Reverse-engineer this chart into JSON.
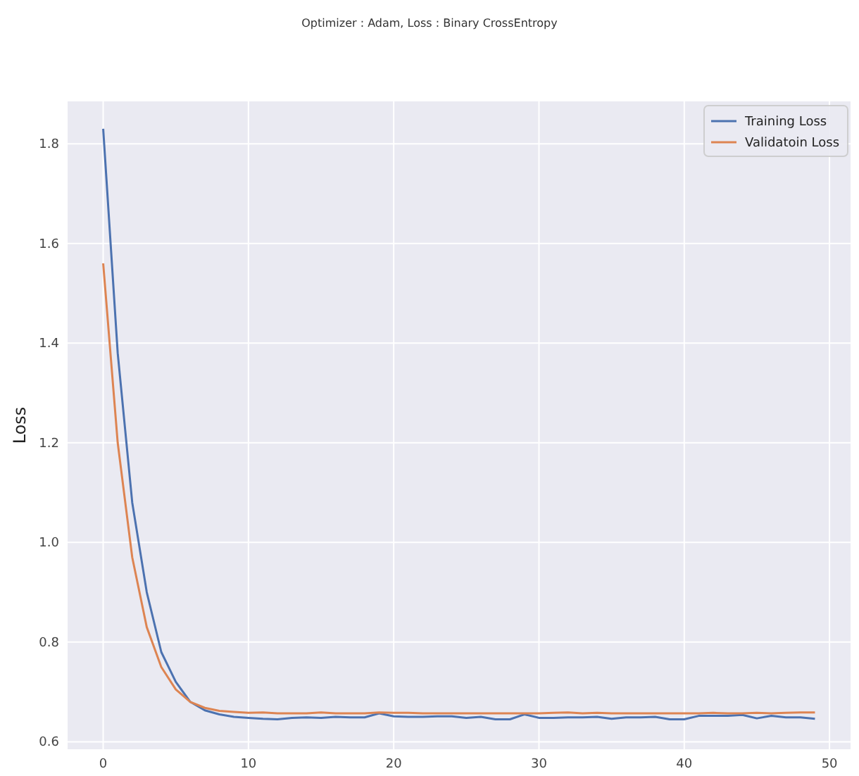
{
  "chart_data": {
    "type": "line",
    "title": "Optimizer : Adam, Loss : Binary CrossEntropy",
    "ylabel": "Loss",
    "x": [
      0,
      1,
      2,
      3,
      4,
      5,
      6,
      7,
      8,
      9,
      10,
      11,
      12,
      13,
      14,
      15,
      16,
      17,
      18,
      19,
      20,
      21,
      22,
      23,
      24,
      25,
      26,
      27,
      28,
      29,
      30,
      31,
      32,
      33,
      34,
      35,
      36,
      37,
      38,
      39,
      40,
      41,
      42,
      43,
      44,
      45,
      46,
      47,
      48,
      49
    ],
    "series": [
      {
        "name": "Training Loss",
        "color": "#4c72b0",
        "values": [
          1.83,
          1.38,
          1.08,
          0.9,
          0.78,
          0.72,
          0.68,
          0.663,
          0.655,
          0.65,
          0.648,
          0.646,
          0.645,
          0.648,
          0.649,
          0.648,
          0.65,
          0.649,
          0.649,
          0.657,
          0.651,
          0.65,
          0.65,
          0.651,
          0.651,
          0.648,
          0.65,
          0.645,
          0.645,
          0.655,
          0.648,
          0.648,
          0.649,
          0.649,
          0.65,
          0.646,
          0.649,
          0.649,
          0.65,
          0.645,
          0.645,
          0.652,
          0.652,
          0.652,
          0.654,
          0.647,
          0.652,
          0.649,
          0.649,
          0.646
        ]
      },
      {
        "name": "Validatoin Loss",
        "color": "#dd8452",
        "values": [
          1.56,
          1.2,
          0.97,
          0.83,
          0.75,
          0.705,
          0.68,
          0.668,
          0.662,
          0.66,
          0.658,
          0.659,
          0.657,
          0.657,
          0.657,
          0.659,
          0.657,
          0.657,
          0.657,
          0.659,
          0.658,
          0.658,
          0.657,
          0.657,
          0.657,
          0.657,
          0.657,
          0.657,
          0.657,
          0.657,
          0.657,
          0.658,
          0.659,
          0.657,
          0.658,
          0.657,
          0.657,
          0.657,
          0.657,
          0.657,
          0.657,
          0.657,
          0.658,
          0.657,
          0.657,
          0.658,
          0.657,
          0.658,
          0.659,
          0.659
        ]
      }
    ],
    "xlim": [
      -2.45,
      51.45
    ],
    "ylim": [
      0.585,
      1.885
    ],
    "xticks": [
      0,
      10,
      20,
      30,
      40,
      50
    ],
    "yticks": [
      0.6,
      0.8,
      {
        "value": 1,
        "label": "1.0"
      },
      1.2,
      1.4,
      1.6,
      1.8
    ],
    "grid": true,
    "legend": "top right",
    "line_style": "solid",
    "marker": "none"
  }
}
